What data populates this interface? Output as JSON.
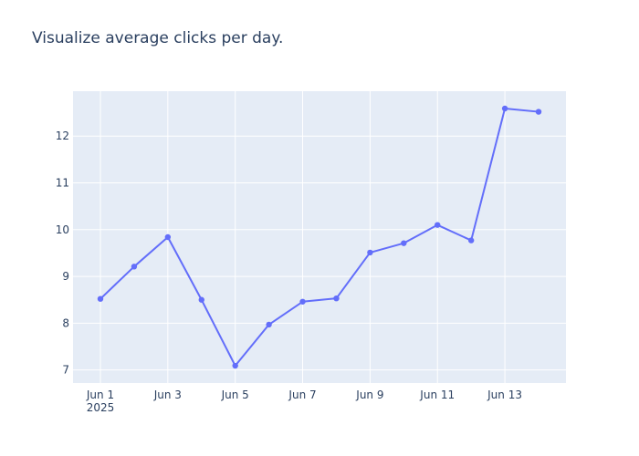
{
  "chart_data": {
    "type": "line",
    "title": "Visualize average clicks per day.",
    "xlabel": "",
    "ylabel": "",
    "x": [
      "2025-06-01",
      "2025-06-02",
      "2025-06-03",
      "2025-06-04",
      "2025-06-05",
      "2025-06-06",
      "2025-06-07",
      "2025-06-08",
      "2025-06-09",
      "2025-06-10",
      "2025-06-11",
      "2025-06-12",
      "2025-06-13",
      "2025-06-14"
    ],
    "series": [
      {
        "values": [
          8.52,
          9.21,
          9.84,
          8.5,
          7.09,
          7.97,
          8.46,
          8.53,
          9.51,
          9.71,
          10.1,
          9.77,
          12.59,
          12.52
        ]
      }
    ],
    "x_tick_labels": [
      "Jun 1",
      "Jun 3",
      "Jun 5",
      "Jun 7",
      "Jun 9",
      "Jun 11",
      "Jun 13"
    ],
    "x_tick_sublabel": "2025",
    "y_ticks": [
      7,
      8,
      9,
      10,
      11,
      12
    ],
    "ylim": [
      6.72,
      12.96
    ],
    "grid": true,
    "legend": "none",
    "colors": {
      "line": "#636efa",
      "plot_bg": "#e5ecf6",
      "grid": "#ffffff",
      "text": "#2a3f5f"
    }
  }
}
